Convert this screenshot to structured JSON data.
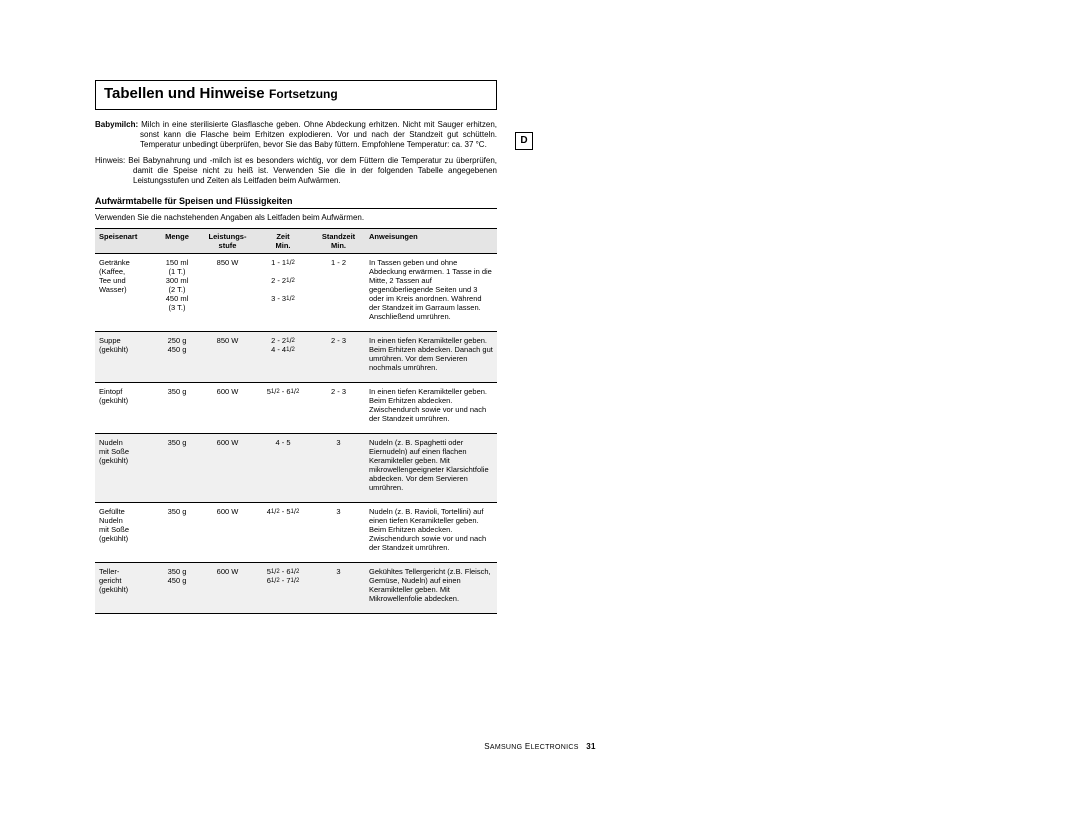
{
  "title": {
    "main": "Tabellen und Hinweise",
    "sub": "Fortsetzung"
  },
  "badge": "D",
  "para_babymilch": {
    "label": "Babymilch:",
    "text": "Milch in eine sterilisierte Glasflasche geben. Ohne Abdeckung erhitzen. Nicht mit Sauger erhitzen, sonst kann die Flasche beim Erhitzen explodieren. Vor und nach der Standzeit gut schütteln. Temperatur unbedingt überprüfen, bevor Sie das Baby füttern. Empfohlene Temperatur: ca. 37 °C."
  },
  "para_hinweis": {
    "label": "Hinweis:",
    "text": "Bei Babynahrung und -milch ist es besonders wichtig, vor dem Füttern die Temperatur zu überprüfen, damit die Speise nicht zu heiß ist. Verwenden Sie die in der folgenden Tabelle angegebenen Leistungsstufen und Zeiten als Leitfaden beim Aufwärmen."
  },
  "subheading": "Aufwärmtabelle für Speisen und Flüssigkeiten",
  "intro": "Verwenden Sie die nachstehenden Angaben als Leitfaden beim Aufwärmen.",
  "columns": {
    "c0": "Speisenart",
    "c1": "Menge",
    "c2": "Leistungs-\nstufe",
    "c3": "Zeit\nMin.",
    "c4": "Standzeit\nMin.",
    "c5": "Anweisungen"
  },
  "rows": [
    {
      "speise": "Getränke\n(Kaffee,\nTee und\nWasser)",
      "menge": "150 ml\n(1 T.)\n300 ml\n(2 T.)\n450 ml\n(3 T.)",
      "leist": "850 W",
      "zeit": "1 - 1½\n\n2 - 2½\n\n3 - 3½",
      "stand": "1 - 2",
      "anw": "In Tassen geben und ohne Abdeckung erwärmen. 1 Tasse in die Mitte, 2 Tassen auf gegenüberliegende Seiten und 3 oder im Kreis anordnen. Während der Standzeit im Garraum lassen. Anschließend umrühren.",
      "alt": false
    },
    {
      "speise": "Suppe\n(gekühlt)",
      "menge": "250 g\n450 g",
      "leist": "850 W",
      "zeit": "2 - 2½\n4 - 4½",
      "stand": "2 - 3",
      "anw": "In einen tiefen Keramikteller geben. Beim Erhitzen abdecken. Danach gut umrühren. Vor dem Servieren nochmals umrühren.",
      "alt": true
    },
    {
      "speise": "Eintopf\n(gekühlt)",
      "menge": "350 g",
      "leist": "600 W",
      "zeit": "5½ - 6½",
      "stand": "2 - 3",
      "anw": "In einen tiefen Keramikteller geben. Beim Erhitzen abdecken. Zwischendurch sowie vor und nach der Standzeit umrühren.",
      "alt": false
    },
    {
      "speise": "Nudeln\nmit Soße\n(gekühlt)",
      "menge": "350 g",
      "leist": "600 W",
      "zeit": "4 - 5",
      "stand": "3",
      "anw": "Nudeln (z. B. Spaghetti oder Eiernudeln) auf einen flachen Keramikteller geben. Mit mikrowellengeeigneter Klarsichtfolie abdecken. Vor dem Servieren umrühren.",
      "alt": true
    },
    {
      "speise": "Gefüllte\nNudeln\nmit Soße\n(gekühlt)",
      "menge": "350 g",
      "leist": "600 W",
      "zeit": "4½ - 5½",
      "stand": "3",
      "anw": "Nudeln (z. B. Ravioli, Tortellini) auf einen tiefen Keramikteller geben. Beim Erhitzen abdecken. Zwischendurch sowie vor und nach der Standzeit umrühren.",
      "alt": false
    },
    {
      "speise": "Teller-\ngericht\n(gekühlt)",
      "menge": "350 g\n450 g",
      "leist": "600 W",
      "zeit": "5½ - 6½\n6½ - 7½",
      "stand": "3",
      "anw": "Gekühltes Tellergericht (z.B. Fleisch, Gemüse, Nudeln) auf einen Keramikteller geben. Mit Mikrowellenfolie abdecken.",
      "alt": true
    }
  ],
  "footer": {
    "brand_caps": "S",
    "brand_rest": "AMSUNG",
    "brand2_caps": "E",
    "brand2_rest": "LECTRONICS",
    "page": "31"
  }
}
